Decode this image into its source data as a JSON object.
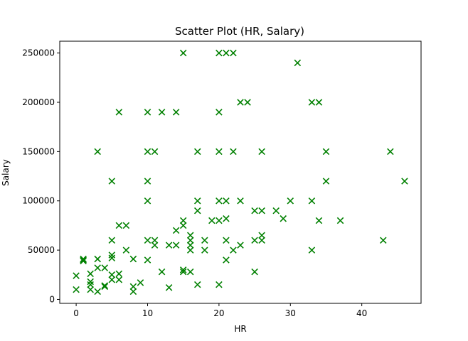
{
  "chart_data": {
    "type": "scatter",
    "title": "Scatter Plot (HR, Salary)",
    "xlabel": "HR",
    "ylabel": "Salary",
    "xlim": [
      -2.3,
      48.3
    ],
    "ylim": [
      -4000,
      262000
    ],
    "x_ticks": [
      0,
      10,
      20,
      30,
      40
    ],
    "y_ticks": [
      0,
      50000,
      100000,
      150000,
      200000,
      250000
    ],
    "marker": "x",
    "color": "#008000",
    "grid": false,
    "series": [
      {
        "points": [
          [
            0,
            10000
          ],
          [
            0,
            24000
          ],
          [
            1,
            40000
          ],
          [
            1,
            41000
          ],
          [
            1,
            39000
          ],
          [
            2,
            10000
          ],
          [
            2,
            15000
          ],
          [
            2,
            18000
          ],
          [
            2,
            26000
          ],
          [
            3,
            8000
          ],
          [
            3,
            32000
          ],
          [
            3,
            41000
          ],
          [
            3,
            150000
          ],
          [
            4,
            13000
          ],
          [
            4,
            14000
          ],
          [
            4,
            32000
          ],
          [
            5,
            20000
          ],
          [
            5,
            25000
          ],
          [
            5,
            42000
          ],
          [
            5,
            45000
          ],
          [
            5,
            60000
          ],
          [
            5,
            120000
          ],
          [
            6,
            20000
          ],
          [
            6,
            26000
          ],
          [
            6,
            75000
          ],
          [
            6,
            190000
          ],
          [
            7,
            50000
          ],
          [
            7,
            75000
          ],
          [
            8,
            8000
          ],
          [
            8,
            13000
          ],
          [
            8,
            41000
          ],
          [
            9,
            17000
          ],
          [
            10,
            40000
          ],
          [
            10,
            60000
          ],
          [
            10,
            100000
          ],
          [
            10,
            120000
          ],
          [
            10,
            150000
          ],
          [
            10,
            190000
          ],
          [
            11,
            55000
          ],
          [
            11,
            60000
          ],
          [
            11,
            150000
          ],
          [
            12,
            28000
          ],
          [
            12,
            190000
          ],
          [
            13,
            12000
          ],
          [
            13,
            55000
          ],
          [
            14,
            55000
          ],
          [
            14,
            70000
          ],
          [
            14,
            190000
          ],
          [
            15,
            28000
          ],
          [
            15,
            30000
          ],
          [
            15,
            75000
          ],
          [
            15,
            80000
          ],
          [
            15,
            250000
          ],
          [
            16,
            28000
          ],
          [
            16,
            50000
          ],
          [
            16,
            55000
          ],
          [
            16,
            60000
          ],
          [
            16,
            65000
          ],
          [
            17,
            15000
          ],
          [
            17,
            90000
          ],
          [
            17,
            100000
          ],
          [
            17,
            150000
          ],
          [
            18,
            50000
          ],
          [
            18,
            60000
          ],
          [
            19,
            80000
          ],
          [
            20,
            15000
          ],
          [
            20,
            80000
          ],
          [
            20,
            100000
          ],
          [
            20,
            150000
          ],
          [
            20,
            190000
          ],
          [
            20,
            250000
          ],
          [
            21,
            40000
          ],
          [
            21,
            60000
          ],
          [
            21,
            82000
          ],
          [
            21,
            100000
          ],
          [
            21,
            250000
          ],
          [
            22,
            50000
          ],
          [
            22,
            150000
          ],
          [
            22,
            250000
          ],
          [
            23,
            55000
          ],
          [
            23,
            100000
          ],
          [
            23,
            200000
          ],
          [
            24,
            200000
          ],
          [
            25,
            28000
          ],
          [
            25,
            60000
          ],
          [
            25,
            90000
          ],
          [
            26,
            60000
          ],
          [
            26,
            65000
          ],
          [
            26,
            90000
          ],
          [
            26,
            150000
          ],
          [
            28,
            90000
          ],
          [
            29,
            82000
          ],
          [
            30,
            100000
          ],
          [
            31,
            240000
          ],
          [
            33,
            50000
          ],
          [
            33,
            100000
          ],
          [
            33,
            200000
          ],
          [
            34,
            80000
          ],
          [
            34,
            200000
          ],
          [
            35,
            120000
          ],
          [
            35,
            150000
          ],
          [
            37,
            80000
          ],
          [
            43,
            60000
          ],
          [
            44,
            150000
          ],
          [
            46,
            120000
          ]
        ]
      }
    ]
  }
}
